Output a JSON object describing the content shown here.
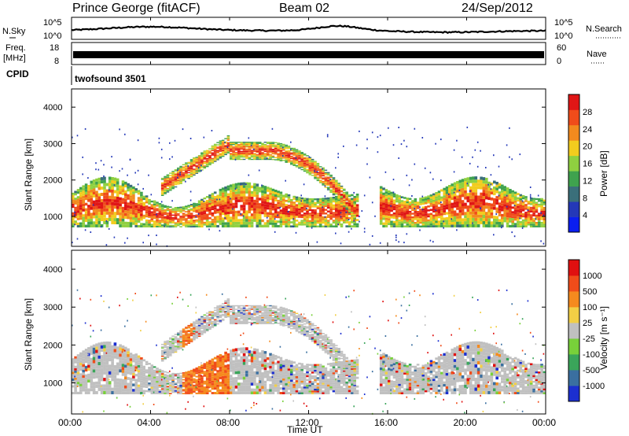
{
  "header": {
    "site": "Prince George (fitACF)",
    "beam": "Beam 02",
    "date": "24/Sep/2012"
  },
  "top_panels": {
    "nsky_label": "N.Sky",
    "nsky_ticks": [
      "10^5",
      "10^0"
    ],
    "nsearch_label": "N.Search",
    "nsearch_ticks": [
      "10^5",
      "10^0"
    ],
    "freq_label_1": "Freq.",
    "freq_label_2": "[MHz]",
    "freq_ticks": [
      "18",
      "8"
    ],
    "nave_label": "Nave",
    "nave_ticks": [
      "60",
      "0"
    ],
    "cpid_label": "CPID",
    "cpid_value": "twofsound 3501"
  },
  "chart_data": [
    {
      "type": "heatmap",
      "panel": "power",
      "ylabel": "Slant Range [km]",
      "ylim": [
        180,
        4500
      ],
      "yticks": [
        "4000",
        "3000",
        "2000",
        "1000"
      ],
      "colorbar_label": "Power [dB]",
      "colorbar_ticks": [
        "28",
        "24",
        "20",
        "16",
        "12",
        "8",
        "4"
      ],
      "colors": [
        "#0a1ef0",
        "#2438b8",
        "#3a6f7a",
        "#3fa24e",
        "#8fd040",
        "#f2cc1e",
        "#f28a1e",
        "#f04c1a",
        "#e01616"
      ],
      "grid": false
    },
    {
      "type": "heatmap",
      "panel": "velocity",
      "ylabel": "Slant Range [km]",
      "ylim": [
        180,
        4500
      ],
      "yticks": [
        "4000",
        "3000",
        "2000",
        "1000"
      ],
      "colorbar_label": "Velocity [m s⁻¹]",
      "colorbar_ticks": [
        "1000",
        "500",
        "100",
        "25",
        "-25",
        "-100",
        "-500",
        "-1000"
      ],
      "colors": [
        "#1c2fd0",
        "#3a6fa0",
        "#3aa55a",
        "#78d03a",
        "#c0c0c0",
        "#f2cf45",
        "#f58a1e",
        "#f04c1a",
        "#e01010"
      ],
      "xlabel": "Time UT",
      "xticks": [
        "00:00",
        "04:00",
        "08:00",
        "12:00",
        "16:00",
        "20:00",
        "00:00"
      ],
      "xlim": [
        0,
        24
      ],
      "grid": false
    }
  ]
}
